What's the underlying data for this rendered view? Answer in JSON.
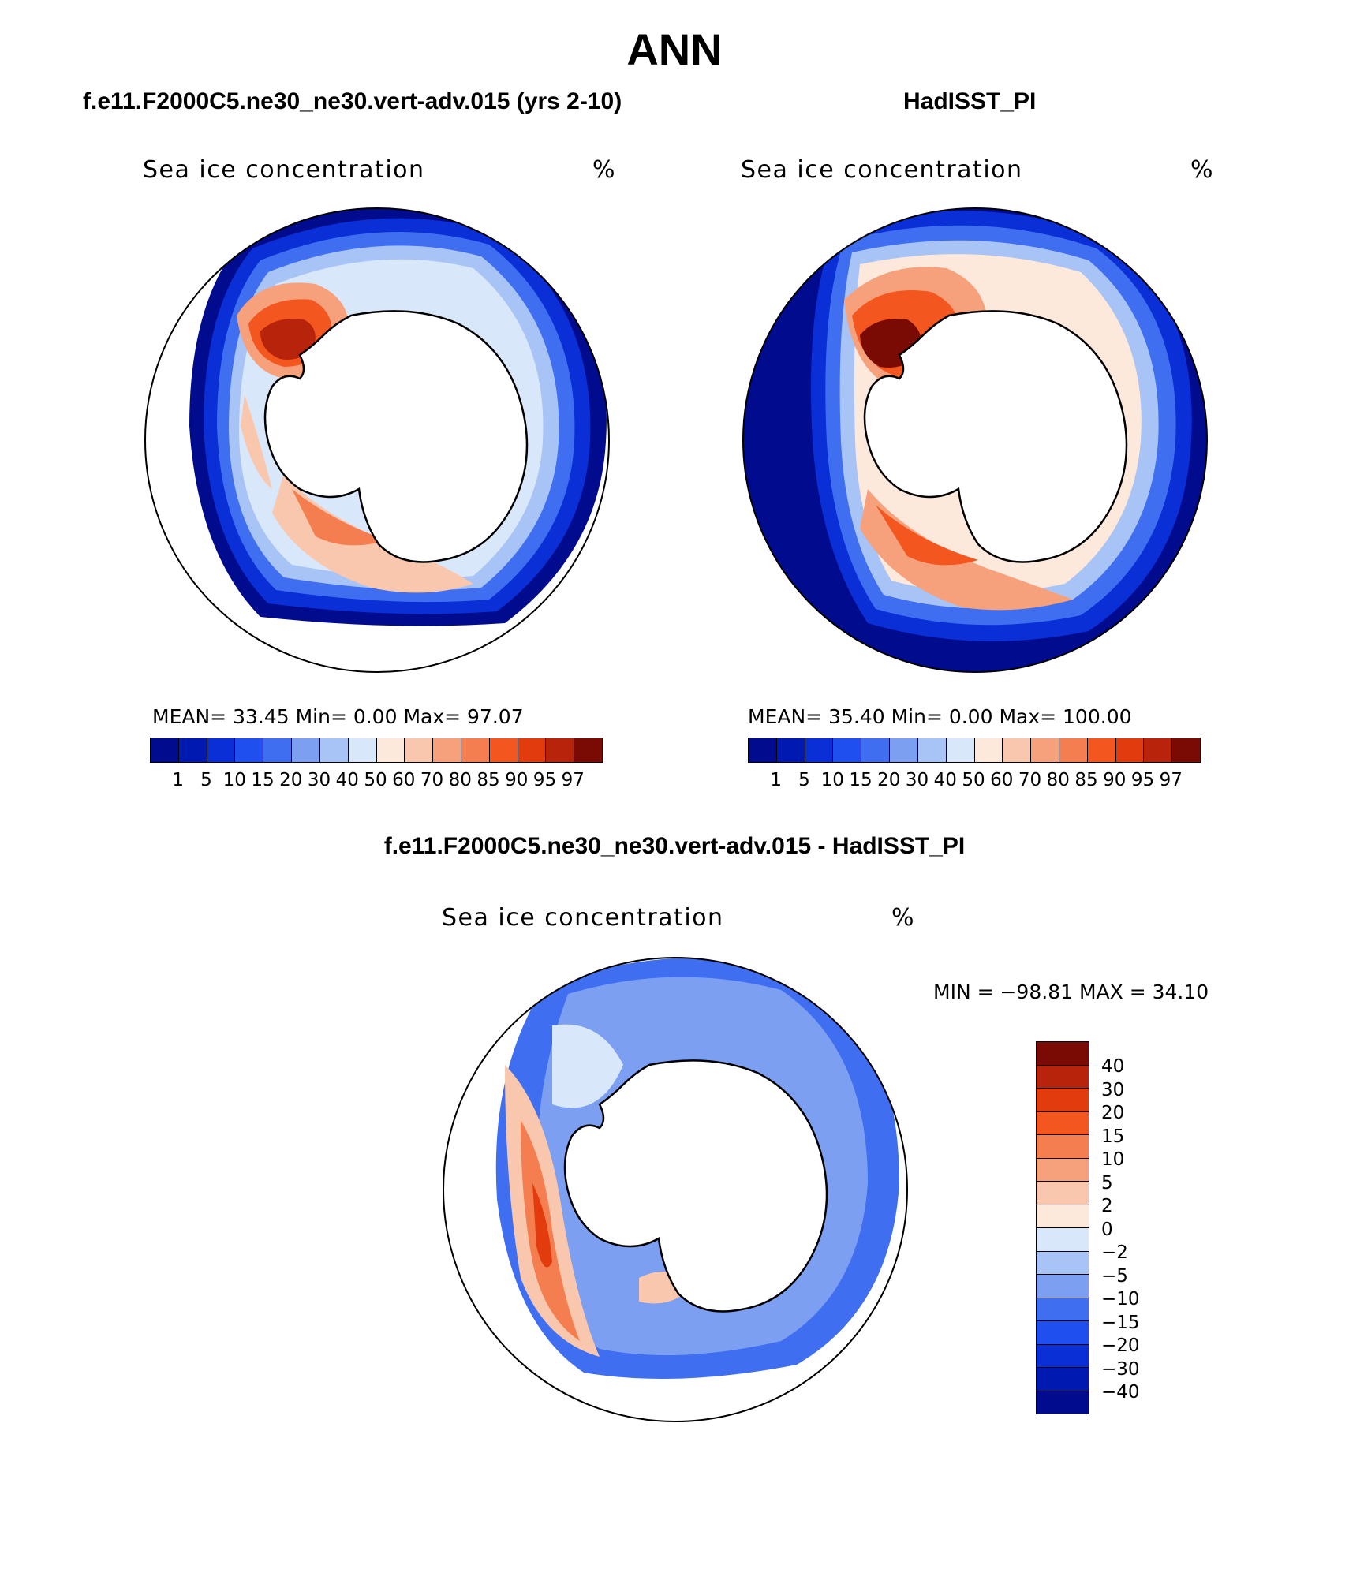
{
  "figure": {
    "title": "ANN",
    "panel_label": "Sea ice concentration",
    "unit": "%"
  },
  "panels": [
    {
      "id": "model",
      "subtitle": "f.e11.F2000C5.ne30_ne30.vert-adv.015 (yrs 2-10)",
      "stats_text": "MEAN=   33.45   Min=     0.00    Max=   97.07",
      "mean": 33.45,
      "min": 0.0,
      "max": 97.07
    },
    {
      "id": "obs",
      "subtitle": "HadISST_PI",
      "stats_text": "MEAN=   35.40   Min=     0.00    Max= 100.00",
      "mean": 35.4,
      "min": 0.0,
      "max": 100.0
    },
    {
      "id": "diff",
      "subtitle": "f.e11.F2000C5.ne30_ne30.vert-adv.015 - HadISST_PI",
      "stats_text": "MIN = −98.81  MAX =   34.10",
      "min": -98.81,
      "max": 34.1
    }
  ],
  "colorbars": {
    "main": {
      "colors": [
        "#000b8d",
        "#0019b0",
        "#0a2fd6",
        "#1f4fef",
        "#3f6ff0",
        "#7c9ff2",
        "#a8c3f5",
        "#d8e8fa",
        "#fde8dc",
        "#f9c7ae",
        "#f7a17c",
        "#f47e4f",
        "#f3571f",
        "#e23c0e",
        "#b8230b",
        "#7a0a04"
      ],
      "ticks": [
        "1",
        "5",
        "10",
        "15",
        "20",
        "30",
        "40",
        "50",
        "60",
        "70",
        "80",
        "85",
        "90",
        "95",
        "97"
      ]
    },
    "diff": {
      "colors": [
        "#7a0a04",
        "#b8230b",
        "#e23c0e",
        "#f3571f",
        "#f47e4f",
        "#f7a17c",
        "#f9c7ae",
        "#fde8dc",
        "#d8e8fa",
        "#a8c3f5",
        "#7c9ff2",
        "#3f6ff0",
        "#1f4fef",
        "#0a2fd6",
        "#0019b0",
        "#000b8d"
      ],
      "ticks": [
        "40",
        "30",
        "20",
        "15",
        "10",
        "5",
        "2",
        "0",
        "−2",
        "−5",
        "−10",
        "−15",
        "−20",
        "−30",
        "−40"
      ]
    }
  },
  "maps": {
    "projection": "south polar stereographic",
    "region": "Antarctica / Southern Ocean"
  }
}
